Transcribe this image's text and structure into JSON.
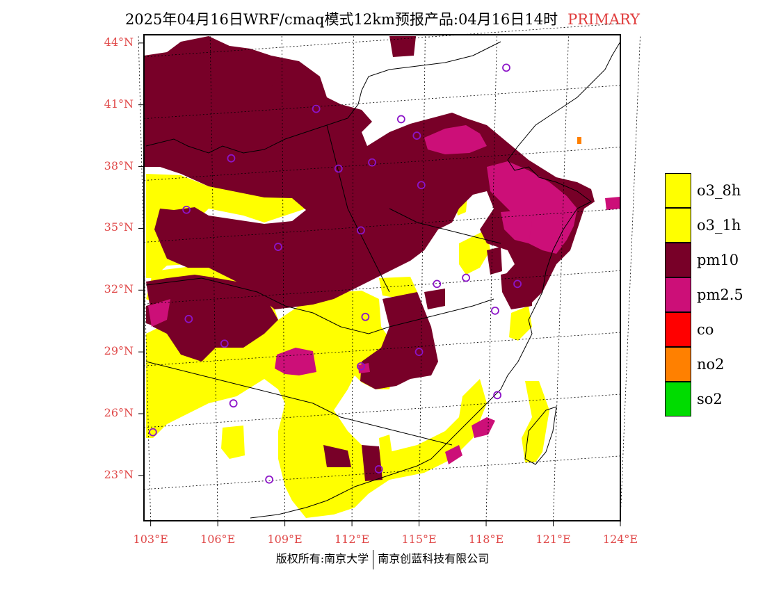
{
  "title": {
    "main": "2025年04月16日WRF/cmaq模式12km预报产品:04月16日14时",
    "tag": "PRIMARY"
  },
  "map": {
    "lon_range": [
      102.7,
      124
    ],
    "lat_range": [
      20.8,
      44.4
    ],
    "lat_labels": [
      "44°N",
      "41°N",
      "38°N",
      "35°N",
      "32°N",
      "29°N",
      "26°N",
      "23°N"
    ],
    "lat_values": [
      44,
      41,
      38,
      35,
      32,
      29,
      26,
      23
    ],
    "lon_labels": [
      "103°E",
      "106°E",
      "109°E",
      "112°E",
      "115°E",
      "118°E",
      "121°E",
      "124°E"
    ],
    "lon_values": [
      103,
      106,
      109,
      112,
      115,
      118,
      121,
      124
    ],
    "colors": {
      "o3": "#ffff00",
      "pm10": "#780028",
      "pm25": "#cc0f78",
      "no2": "#ff8000",
      "site_marker": "#8c14c8",
      "grid_label": "#e04848"
    },
    "sites": [
      [
        118.9,
        42.8
      ],
      [
        110.4,
        40.8
      ],
      [
        114.2,
        40.3
      ],
      [
        114.9,
        39.5
      ],
      [
        106.6,
        38.4
      ],
      [
        111.4,
        37.9
      ],
      [
        112.9,
        38.2
      ],
      [
        115.1,
        37.1
      ],
      [
        104.6,
        35.9
      ],
      [
        112.4,
        34.9
      ],
      [
        108.7,
        34.1
      ],
      [
        117.1,
        32.6
      ],
      [
        115.8,
        32.3
      ],
      [
        119.4,
        32.3
      ],
      [
        118.4,
        31.0
      ],
      [
        104.7,
        30.6
      ],
      [
        112.6,
        30.7
      ],
      [
        106.3,
        29.4
      ],
      [
        115.0,
        29.0
      ],
      [
        112.4,
        28.3
      ],
      [
        118.5,
        26.9
      ],
      [
        106.7,
        26.5
      ],
      [
        103.1,
        25.1
      ],
      [
        108.3,
        22.8
      ],
      [
        113.2,
        23.3
      ]
    ]
  },
  "legend": [
    {
      "label": "o3_8h",
      "color": "#ffff00"
    },
    {
      "label": "o3_1h",
      "color": "#ffff00"
    },
    {
      "label": "pm10",
      "color": "#780028"
    },
    {
      "label": "pm2.5",
      "color": "#cc0f78"
    },
    {
      "label": "co",
      "color": "#ff0000"
    },
    {
      "label": "no2",
      "color": "#ff8000"
    },
    {
      "label": "so2",
      "color": "#00dc00"
    }
  ],
  "copyright": {
    "left": "版权所有:南京大学",
    "right": "南京创蓝科技有限公司"
  }
}
